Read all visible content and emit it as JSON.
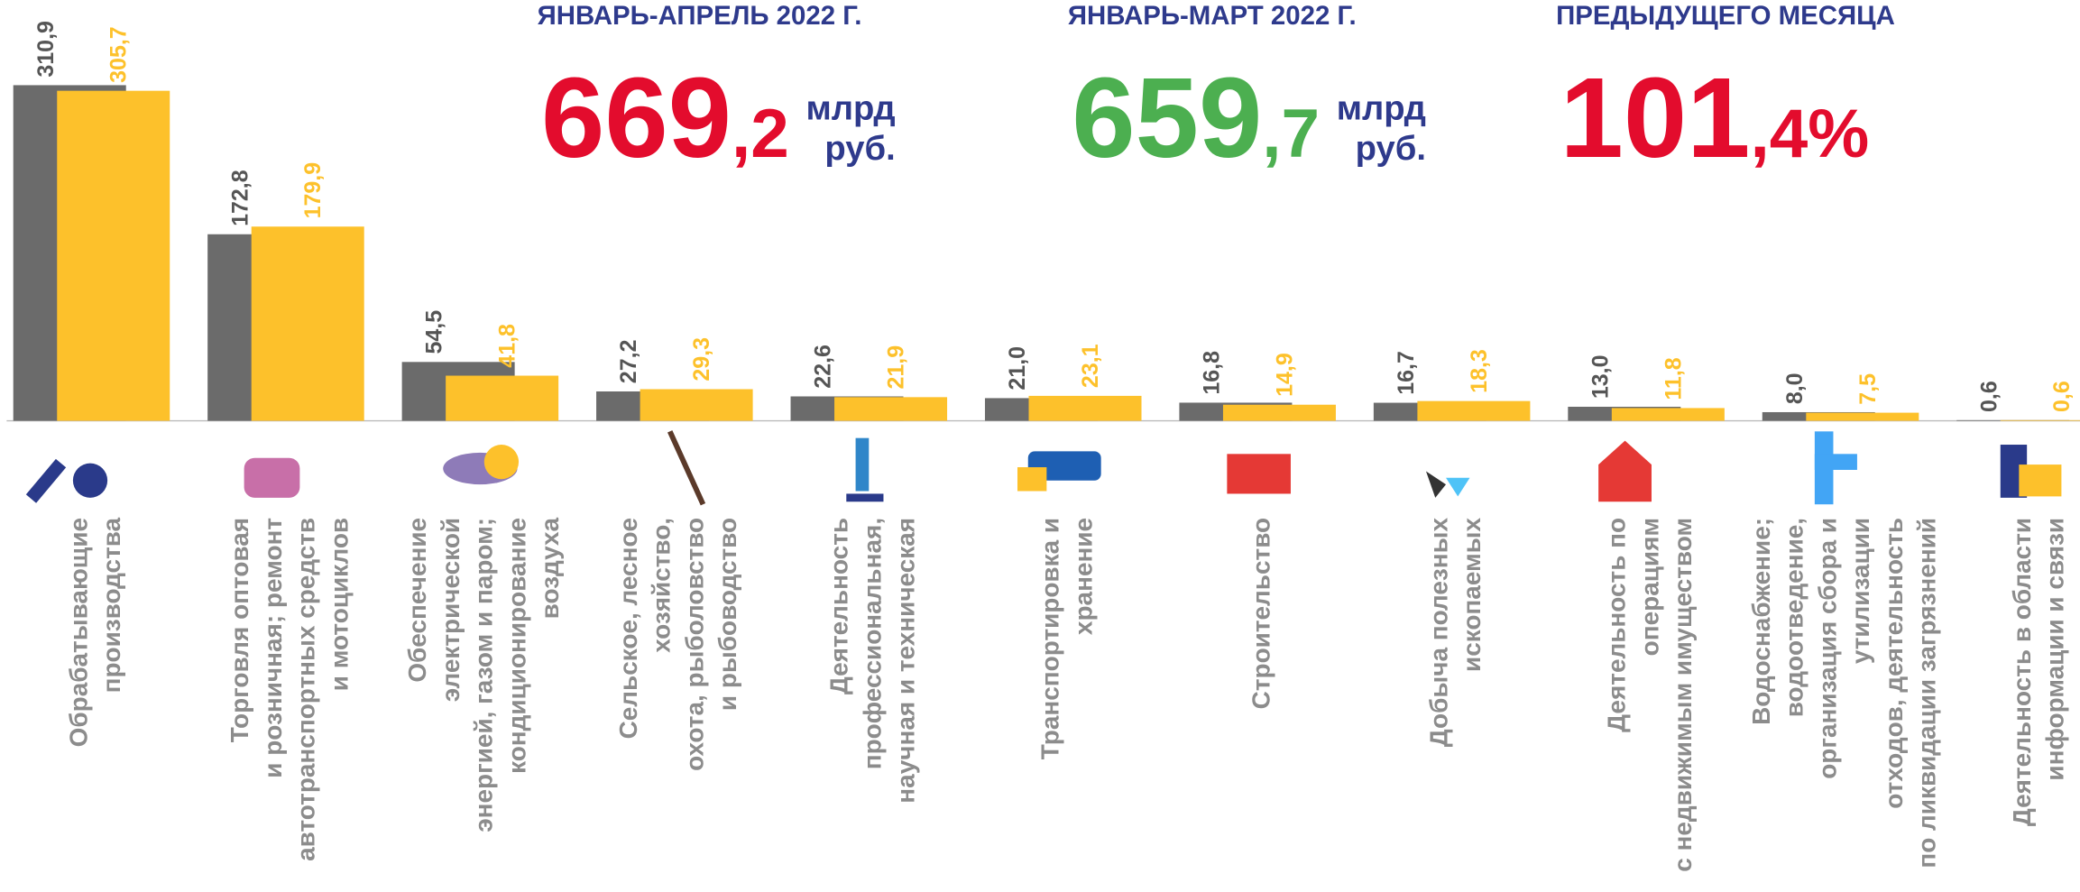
{
  "header": [
    {
      "title": "ЯНВАРЬ-АПРЕЛЬ 2022 Г.",
      "int": "669",
      "frac": ",2",
      "unit": [
        "млрд",
        "руб."
      ],
      "color": "#e30c2d"
    },
    {
      "title": "ЯНВАРЬ-МАРТ 2022 Г.",
      "int": "659",
      "frac": ",7",
      "unit": [
        "млрд",
        "руб."
      ],
      "color": "#4caf50"
    },
    {
      "title": "ПРЕДЫДУЩЕГО МЕСЯЦА",
      "int": "101",
      "frac": ",4%",
      "unit": [],
      "color": "#e30c2d"
    }
  ],
  "chart_data": {
    "type": "bar",
    "categories": [
      "Обрабатывающие\nпроизводства",
      "Торговля оптовая\nи розничная; ремонт\nавтотранспортных средств\nи мотоциклов",
      "Обеспечение\nэлектрической\nэнергией, газом и паром;\nкондиционирование\nвоздуха",
      "Сельское, лесное\nхозяйство,\nохота, рыболовство\nи  рыбоводство",
      "Деятельность\nпрофессиональная,\nнаучная и техническая",
      "Транспортировка и\nхранение",
      "Строительство",
      "Добыча полезных\nископаемых",
      "Деятельность по\nоперациям\nс недвижимым имуществом",
      "Водоснабжение;\nводоотведение,\nорганизация сбора и\nутилизации\nотходов, деятельность\nпо ликвидации загрязнений",
      "Деятельность в области\nинформации и связи"
    ],
    "series": [
      {
        "color": "#6b6b6b",
        "values": [
          310.9,
          172.8,
          54.5,
          27.2,
          22.6,
          21.0,
          16.8,
          16.7,
          13.0,
          8.0,
          0.6
        ],
        "value_labels": [
          "310,9",
          "172,8",
          "54,5",
          "27,2",
          "22,6",
          "21,0",
          "16,8",
          "16,7",
          "13,0",
          "8,0",
          "0,6"
        ]
      },
      {
        "color": "#fdc12b",
        "values": [
          305.7,
          179.9,
          41.8,
          29.3,
          21.9,
          23.1,
          14.9,
          18.3,
          11.8,
          7.5,
          0.6
        ],
        "value_labels": [
          "305,7",
          "179,9",
          "41,8",
          "29,3",
          "21,9",
          "23,1",
          "14,9",
          "18,3",
          "11,8",
          "7,5",
          "0,6"
        ]
      }
    ],
    "ylim": [
      0,
      389.5
    ]
  }
}
